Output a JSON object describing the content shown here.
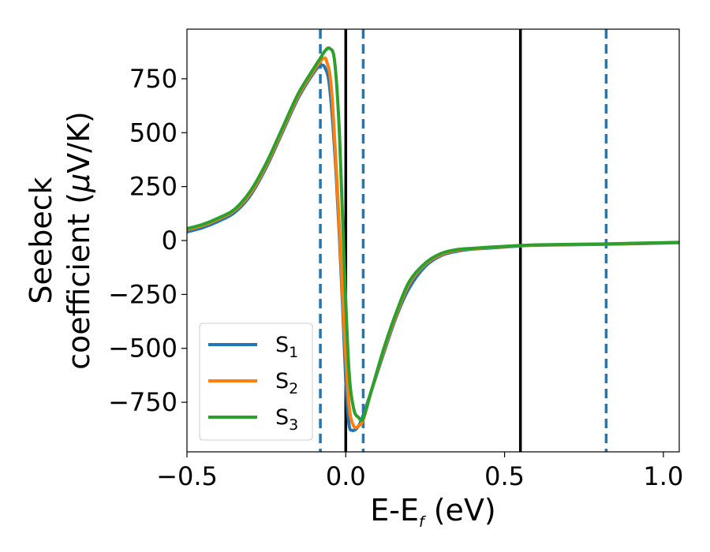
{
  "chart_data": {
    "type": "line",
    "xlabel": {
      "main": "E-E",
      "sub": "f",
      "unit": " (eV)"
    },
    "ylabel": {
      "line1": "Seebeck",
      "line2_main": "coefficient  (",
      "mu": "μ",
      "line2_unit": "V/K)"
    },
    "xlim": [
      -0.5,
      1.05
    ],
    "ylim": [
      -980,
      980
    ],
    "xticks": [
      {
        "value": -0.5,
        "label": "−0.5"
      },
      {
        "value": 0.0,
        "label": "0.0"
      },
      {
        "value": 0.5,
        "label": "0.5"
      },
      {
        "value": 1.0,
        "label": "1.0"
      }
    ],
    "yticks": [
      {
        "value": -750,
        "label": "−750"
      },
      {
        "value": -500,
        "label": "−500"
      },
      {
        "value": -250,
        "label": "−250"
      },
      {
        "value": 0,
        "label": "0"
      },
      {
        "value": 250,
        "label": "250"
      },
      {
        "value": 500,
        "label": "500"
      },
      {
        "value": 750,
        "label": "750"
      }
    ],
    "grid": false,
    "legend": {
      "position": "lower-left"
    },
    "vlines": [
      {
        "x": -0.08,
        "style": "dashed",
        "color": "#1f77b4"
      },
      {
        "x": 0.0,
        "style": "solid",
        "color": "#000000"
      },
      {
        "x": 0.055,
        "style": "dashed",
        "color": "#1f77b4"
      },
      {
        "x": 0.55,
        "style": "solid",
        "color": "#000000"
      },
      {
        "x": 0.82,
        "style": "dashed",
        "color": "#1f77b4"
      }
    ],
    "series": [
      {
        "name": "S",
        "sub": "1",
        "color": "#1f77b4",
        "x": [
          -0.5,
          -0.45,
          -0.4,
          -0.35,
          -0.3,
          -0.25,
          -0.2,
          -0.15,
          -0.1,
          -0.08,
          -0.065,
          -0.05,
          -0.03,
          -0.01,
          0.0,
          0.01,
          0.02,
          0.035,
          0.05,
          0.08,
          0.12,
          0.16,
          0.2,
          0.25,
          0.3,
          0.35,
          0.4,
          0.45,
          0.5,
          0.55,
          0.6,
          0.7,
          0.8,
          0.9,
          1.0,
          1.05
        ],
        "y": [
          40,
          60,
          90,
          130,
          210,
          340,
          500,
          660,
          780,
          810,
          800,
          700,
          300,
          -300,
          -650,
          -850,
          -880,
          -870,
          -830,
          -700,
          -520,
          -350,
          -220,
          -120,
          -70,
          -50,
          -40,
          -35,
          -30,
          -25,
          -22,
          -20,
          -18,
          -15,
          -12,
          -10
        ]
      },
      {
        "name": "S",
        "sub": "2",
        "color": "#ff7f0e",
        "x": [
          -0.5,
          -0.45,
          -0.4,
          -0.35,
          -0.3,
          -0.25,
          -0.2,
          -0.15,
          -0.1,
          -0.08,
          -0.07,
          -0.06,
          -0.045,
          -0.025,
          -0.005,
          0.01,
          0.025,
          0.04,
          0.055,
          0.08,
          0.12,
          0.16,
          0.2,
          0.25,
          0.3,
          0.35,
          0.4,
          0.45,
          0.5,
          0.55,
          0.6,
          0.7,
          0.8,
          0.9,
          1.0,
          1.05
        ],
        "y": [
          50,
          70,
          100,
          140,
          220,
          350,
          510,
          670,
          790,
          830,
          845,
          830,
          700,
          200,
          -400,
          -760,
          -860,
          -860,
          -830,
          -700,
          -510,
          -340,
          -200,
          -110,
          -65,
          -45,
          -38,
          -33,
          -28,
          -24,
          -21,
          -19,
          -17,
          -14,
          -11,
          -9
        ]
      },
      {
        "name": "S",
        "sub": "3",
        "color": "#2ca02c",
        "x": [
          -0.5,
          -0.45,
          -0.4,
          -0.35,
          -0.3,
          -0.25,
          -0.2,
          -0.15,
          -0.1,
          -0.08,
          -0.065,
          -0.05,
          -0.035,
          -0.02,
          -0.005,
          0.01,
          0.025,
          0.04,
          0.055,
          0.08,
          0.12,
          0.16,
          0.2,
          0.25,
          0.3,
          0.35,
          0.4,
          0.45,
          0.5,
          0.55,
          0.6,
          0.7,
          0.8,
          0.9,
          1.0,
          1.05
        ],
        "y": [
          55,
          75,
          105,
          145,
          230,
          360,
          520,
          680,
          800,
          845,
          880,
          890,
          830,
          500,
          -100,
          -600,
          -780,
          -820,
          -825,
          -700,
          -500,
          -330,
          -190,
          -105,
          -60,
          -42,
          -36,
          -31,
          -27,
          -23,
          -20,
          -18,
          -16,
          -13,
          -10,
          -8
        ]
      }
    ]
  }
}
